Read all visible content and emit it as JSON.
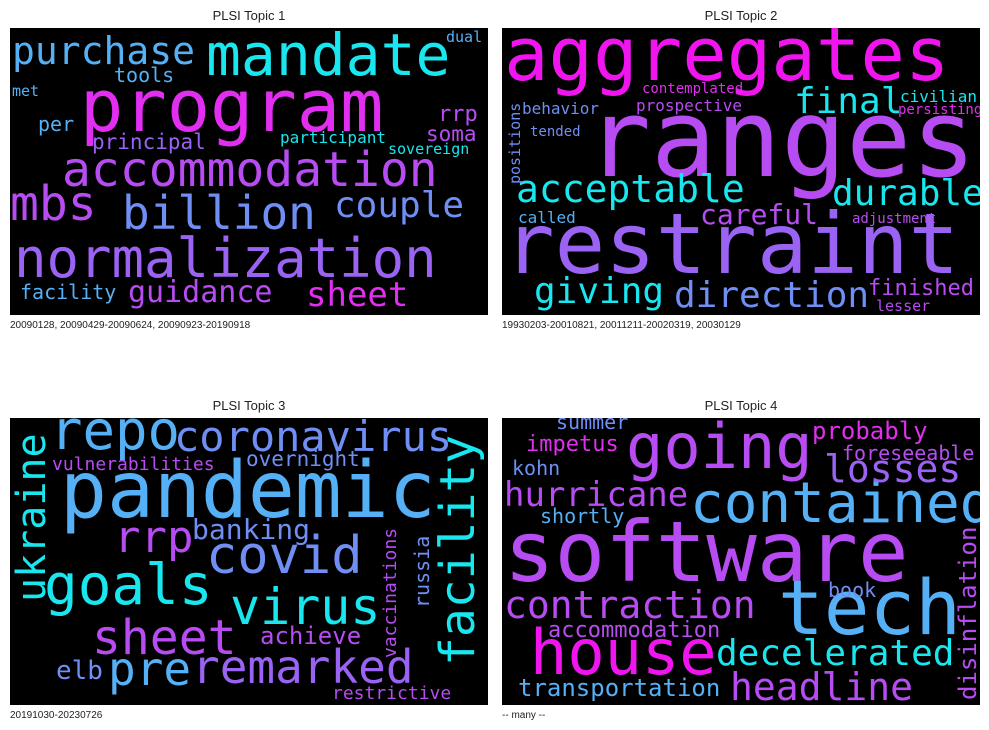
{
  "colors": {
    "cyan": "#19e6ee",
    "sky": "#55b0f5",
    "blue": "#6f8ff5",
    "violet": "#9a63f3",
    "purple": "#b84cf3",
    "magenta": "#e22ef0",
    "pink": "#f015ee"
  },
  "panels": [
    {
      "title": "PLSI Topic 1",
      "caption": "20090128, 20090429-20090624, 20090923-20190918",
      "words": [
        {
          "text": "program",
          "c": "magenta"
        },
        {
          "text": "mandate",
          "c": "cyan"
        },
        {
          "text": "purchase",
          "c": "sky"
        },
        {
          "text": "accommodation",
          "c": "purple"
        },
        {
          "text": "normalization",
          "c": "violet"
        },
        {
          "text": "billion",
          "c": "blue"
        },
        {
          "text": "mbs",
          "c": "purple"
        },
        {
          "text": "couple",
          "c": "blue"
        },
        {
          "text": "guidance",
          "c": "purple"
        },
        {
          "text": "sheet",
          "c": "magenta"
        },
        {
          "text": "facility",
          "c": "sky"
        },
        {
          "text": "tools",
          "c": "sky"
        },
        {
          "text": "principal",
          "c": "violet"
        },
        {
          "text": "per",
          "c": "sky"
        },
        {
          "text": "met",
          "c": "sky"
        },
        {
          "text": "dual",
          "c": "sky"
        },
        {
          "text": "rrp",
          "c": "purple"
        },
        {
          "text": "soma",
          "c": "purple"
        },
        {
          "text": "participant",
          "c": "cyan"
        },
        {
          "text": "sovereign",
          "c": "cyan"
        }
      ]
    },
    {
      "title": "PLSI Topic 2",
      "caption": "19930203-20010821, 20011211-20020319, 20030129",
      "words": [
        {
          "text": "aggregates",
          "c": "pink"
        },
        {
          "text": "ranges",
          "c": "purple"
        },
        {
          "text": "restraint",
          "c": "violet"
        },
        {
          "text": "acceptable",
          "c": "cyan"
        },
        {
          "text": "final",
          "c": "cyan"
        },
        {
          "text": "durable",
          "c": "cyan"
        },
        {
          "text": "careful",
          "c": "purple"
        },
        {
          "text": "giving",
          "c": "cyan"
        },
        {
          "text": "direction",
          "c": "blue"
        },
        {
          "text": "finished",
          "c": "purple"
        },
        {
          "text": "lesser",
          "c": "purple"
        },
        {
          "text": "behavior",
          "c": "blue"
        },
        {
          "text": "contemplated",
          "c": "magenta"
        },
        {
          "text": "prospective",
          "c": "purple"
        },
        {
          "text": "civilian",
          "c": "cyan"
        },
        {
          "text": "persisting",
          "c": "magenta"
        },
        {
          "text": "positions",
          "c": "blue"
        },
        {
          "text": "tended",
          "c": "blue"
        },
        {
          "text": "called",
          "c": "sky"
        },
        {
          "text": "adjustment",
          "c": "purple"
        }
      ]
    },
    {
      "title": "PLSI Topic 3",
      "caption": "20191030-20230726",
      "words": [
        {
          "text": "pandemic",
          "c": "sky"
        },
        {
          "text": "repo",
          "c": "sky"
        },
        {
          "text": "coronavirus",
          "c": "blue"
        },
        {
          "text": "ukraine",
          "c": "cyan"
        },
        {
          "text": "facility",
          "c": "cyan"
        },
        {
          "text": "goals",
          "c": "cyan"
        },
        {
          "text": "covid",
          "c": "blue"
        },
        {
          "text": "virus",
          "c": "cyan"
        },
        {
          "text": "sheet",
          "c": "purple"
        },
        {
          "text": "pre",
          "c": "sky"
        },
        {
          "text": "remarked",
          "c": "violet"
        },
        {
          "text": "rrp",
          "c": "purple"
        },
        {
          "text": "banking",
          "c": "blue"
        },
        {
          "text": "vulnerabilities",
          "c": "purple"
        },
        {
          "text": "overnight",
          "c": "blue"
        },
        {
          "text": "achieve",
          "c": "purple"
        },
        {
          "text": "elb",
          "c": "blue"
        },
        {
          "text": "restrictive",
          "c": "purple"
        },
        {
          "text": "vaccinations",
          "c": "purple"
        },
        {
          "text": "russia",
          "c": "blue"
        }
      ]
    },
    {
      "title": "PLSI Topic 4",
      "caption": "-- many --",
      "words": [
        {
          "text": "software",
          "c": "purple"
        },
        {
          "text": "going",
          "c": "purple"
        },
        {
          "text": "contained",
          "c": "sky"
        },
        {
          "text": "tech",
          "c": "sky"
        },
        {
          "text": "house",
          "c": "pink"
        },
        {
          "text": "hurricane",
          "c": "purple"
        },
        {
          "text": "contraction",
          "c": "purple"
        },
        {
          "text": "decelerated",
          "c": "cyan"
        },
        {
          "text": "headline",
          "c": "purple"
        },
        {
          "text": "losses",
          "c": "violet"
        },
        {
          "text": "probably",
          "c": "magenta"
        },
        {
          "text": "foreseeable",
          "c": "purple"
        },
        {
          "text": "summer",
          "c": "blue"
        },
        {
          "text": "impetus",
          "c": "magenta"
        },
        {
          "text": "kohn",
          "c": "blue"
        },
        {
          "text": "shortly",
          "c": "sky"
        },
        {
          "text": "book",
          "c": "blue"
        },
        {
          "text": "accommodation",
          "c": "purple"
        },
        {
          "text": "transportation",
          "c": "sky"
        },
        {
          "text": "disinflation",
          "c": "purple"
        }
      ]
    }
  ]
}
